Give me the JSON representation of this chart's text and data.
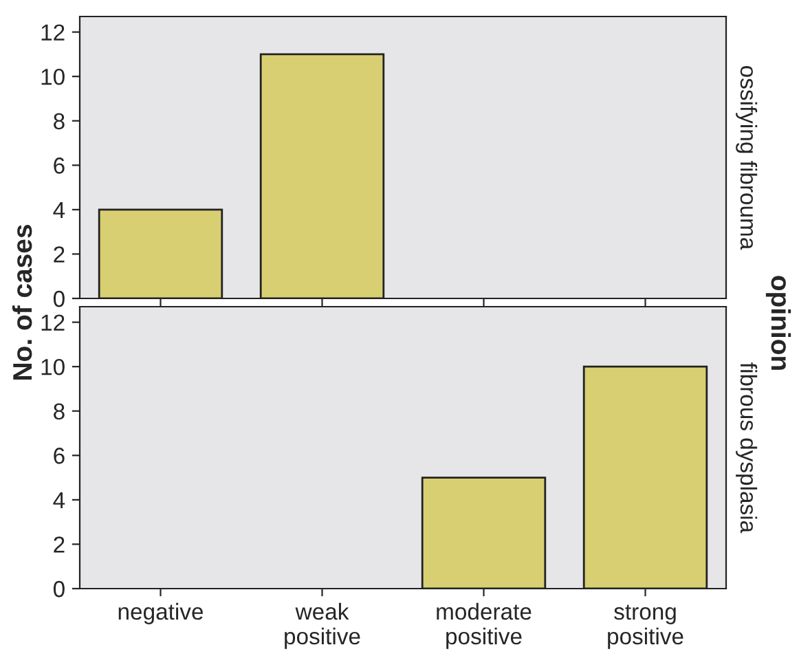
{
  "chart_data": [
    {
      "type": "bar",
      "categories": [
        null,
        null,
        null,
        null
      ],
      "values": [
        4,
        11,
        null,
        null
      ],
      "color": "#d8cf72",
      "ylim": [
        0,
        12.7
      ],
      "yticks": [
        0,
        2,
        4,
        6,
        8,
        10,
        12
      ],
      "ylabel": "No. of cases",
      "annotations": [
        "ossifying fibrouma",
        "opinion"
      ],
      "grid": false,
      "legend": false
    },
    {
      "type": "bar",
      "categories": [
        "negative",
        "weak\npositive",
        "moderate\npositive",
        "strong\npositive"
      ],
      "values": [
        null,
        null,
        5,
        10
      ],
      "color": "#d8cf72",
      "ylim": [
        0,
        12.7
      ],
      "yticks": [
        0,
        2,
        4,
        6,
        8,
        10,
        12
      ],
      "annotations": [
        "fibrous dysplasia"
      ],
      "grid": false,
      "legend": false
    }
  ]
}
